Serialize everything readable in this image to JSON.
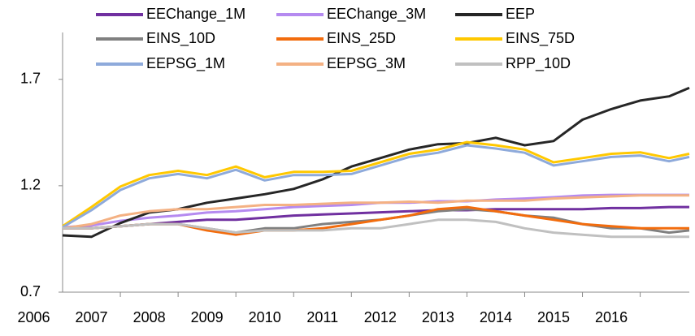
{
  "chart_data": {
    "type": "line",
    "x": [
      2006.5,
      2007,
      2007.5,
      2008,
      2008.5,
      2009,
      2009.5,
      2010,
      2010.5,
      2011,
      2011.5,
      2012,
      2012.5,
      2013,
      2013.5,
      2014,
      2014.5,
      2015,
      2015.5,
      2016,
      2016.5,
      2017,
      2017.35
    ],
    "series": [
      {
        "name": "EEChange_1M",
        "color": "#7030a0",
        "values": [
          1.0,
          1.0,
          1.01,
          1.02,
          1.03,
          1.04,
          1.04,
          1.05,
          1.06,
          1.065,
          1.07,
          1.075,
          1.08,
          1.085,
          1.085,
          1.09,
          1.09,
          1.09,
          1.09,
          1.095,
          1.095,
          1.1,
          1.1
        ]
      },
      {
        "name": "EEChange_3M",
        "color": "#b58af0",
        "values": [
          1.005,
          1.013,
          1.035,
          1.05,
          1.06,
          1.074,
          1.08,
          1.09,
          1.1,
          1.105,
          1.11,
          1.12,
          1.12,
          1.127,
          1.127,
          1.135,
          1.14,
          1.146,
          1.154,
          1.157,
          1.157,
          1.157,
          1.157
        ]
      },
      {
        "name": "EEP",
        "color": "#262626",
        "values": [
          0.967,
          0.96,
          1.025,
          1.074,
          1.09,
          1.12,
          1.14,
          1.16,
          1.185,
          1.23,
          1.29,
          1.33,
          1.37,
          1.395,
          1.4,
          1.425,
          1.39,
          1.41,
          1.51,
          1.56,
          1.6,
          1.62,
          1.66
        ]
      },
      {
        "name": "EINS_10D",
        "color": "#808080",
        "values": [
          1.0,
          1.0,
          1.01,
          1.02,
          1.02,
          1.0,
          0.98,
          1.0,
          1.0,
          1.02,
          1.03,
          1.04,
          1.06,
          1.08,
          1.09,
          1.08,
          1.06,
          1.05,
          1.02,
          1.0,
          1.0,
          0.98,
          0.99
        ]
      },
      {
        "name": "EINS_25D",
        "color": "#f26c0d",
        "values": [
          1.0,
          1.0,
          1.01,
          1.02,
          1.02,
          0.99,
          0.97,
          0.99,
          0.99,
          1.0,
          1.02,
          1.04,
          1.06,
          1.09,
          1.1,
          1.08,
          1.06,
          1.04,
          1.02,
          1.01,
          1.0,
          1.0,
          1.0
        ]
      },
      {
        "name": "EINS_75D",
        "color": "#ffc800",
        "values": [
          1.01,
          1.1,
          1.196,
          1.25,
          1.27,
          1.25,
          1.29,
          1.24,
          1.265,
          1.265,
          1.27,
          1.31,
          1.35,
          1.37,
          1.405,
          1.39,
          1.37,
          1.31,
          1.33,
          1.35,
          1.357,
          1.33,
          1.35
        ]
      },
      {
        "name": "EEPSG_1M",
        "color": "#8eaadb",
        "values": [
          1.005,
          1.085,
          1.18,
          1.235,
          1.255,
          1.235,
          1.275,
          1.225,
          1.25,
          1.25,
          1.255,
          1.295,
          1.335,
          1.355,
          1.39,
          1.375,
          1.355,
          1.295,
          1.315,
          1.335,
          1.342,
          1.315,
          1.335
        ]
      },
      {
        "name": "EEPSG_3M",
        "color": "#f4b183",
        "values": [
          1.0,
          1.02,
          1.06,
          1.08,
          1.09,
          1.09,
          1.1,
          1.11,
          1.11,
          1.115,
          1.12,
          1.12,
          1.125,
          1.12,
          1.13,
          1.13,
          1.13,
          1.14,
          1.145,
          1.15,
          1.155,
          1.155,
          1.155
        ]
      },
      {
        "name": "RPP_10D",
        "color": "#c0c0c0",
        "values": [
          1.0,
          1.0,
          1.01,
          1.02,
          1.02,
          1.0,
          0.98,
          0.99,
          0.99,
          0.99,
          1.0,
          1.0,
          1.02,
          1.04,
          1.04,
          1.03,
          1.0,
          0.98,
          0.97,
          0.96,
          0.96,
          0.96,
          0.96
        ]
      }
    ],
    "xlim": [
      2006.5,
      2017.35
    ],
    "xticks": [
      2006,
      2007,
      2008,
      2009,
      2010,
      2011,
      2012,
      2013,
      2014,
      2015,
      2016
    ],
    "ylim": [
      0.7,
      1.92
    ],
    "yticks": [
      0.7,
      1.2,
      1.7
    ],
    "legend": "top"
  }
}
